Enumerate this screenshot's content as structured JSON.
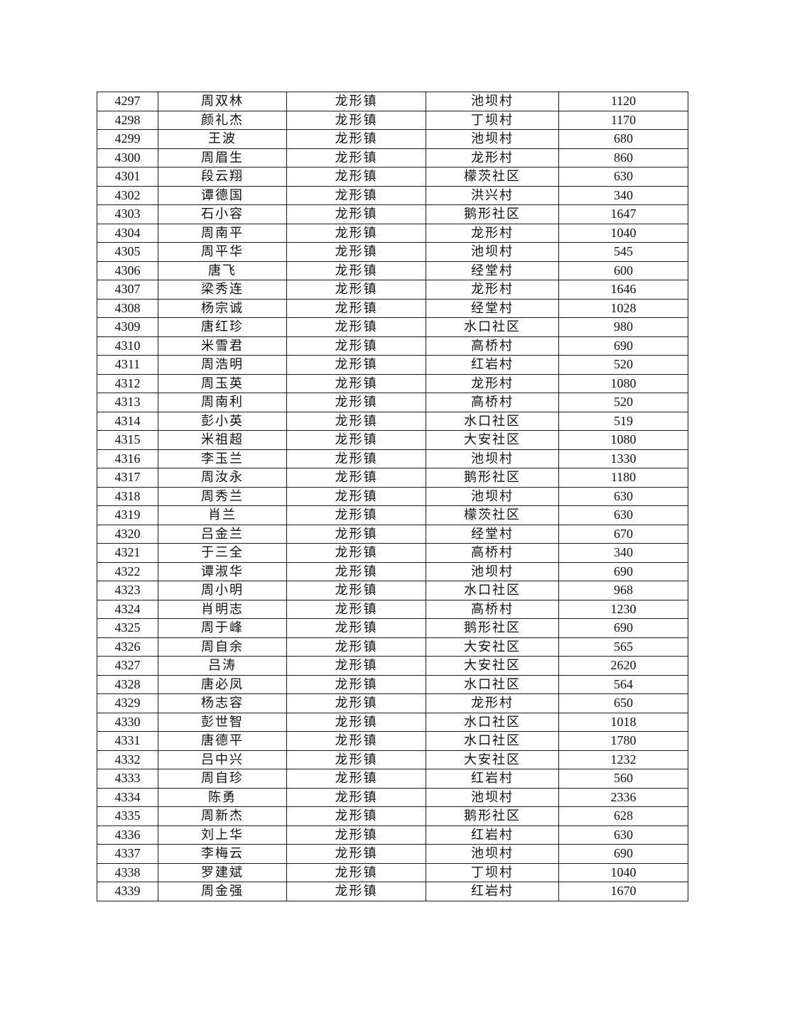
{
  "rows": [
    [
      "4297",
      "周双林",
      "龙形镇",
      "池坝村",
      "1120"
    ],
    [
      "4298",
      "颜礼杰",
      "龙形镇",
      "丁坝村",
      "1170"
    ],
    [
      "4299",
      "王波",
      "龙形镇",
      "池坝村",
      "680"
    ],
    [
      "4300",
      "周眉生",
      "龙形镇",
      "龙形村",
      "860"
    ],
    [
      "4301",
      "段云翔",
      "龙形镇",
      "檬茨社区",
      "630"
    ],
    [
      "4302",
      "谭德国",
      "龙形镇",
      "洪兴村",
      "340"
    ],
    [
      "4303",
      "石小容",
      "龙形镇",
      "鹅形社区",
      "1647"
    ],
    [
      "4304",
      "周南平",
      "龙形镇",
      "龙形村",
      "1040"
    ],
    [
      "4305",
      "周平华",
      "龙形镇",
      "池坝村",
      "545"
    ],
    [
      "4306",
      "唐飞",
      "龙形镇",
      "经堂村",
      "600"
    ],
    [
      "4307",
      "梁秀连",
      "龙形镇",
      "龙形村",
      "1646"
    ],
    [
      "4308",
      "杨宗诚",
      "龙形镇",
      "经堂村",
      "1028"
    ],
    [
      "4309",
      "唐红珍",
      "龙形镇",
      "水口社区",
      "980"
    ],
    [
      "4310",
      "米雪君",
      "龙形镇",
      "高桥村",
      "690"
    ],
    [
      "4311",
      "周浩明",
      "龙形镇",
      "红岩村",
      "520"
    ],
    [
      "4312",
      "周玉英",
      "龙形镇",
      "龙形村",
      "1080"
    ],
    [
      "4313",
      "周南利",
      "龙形镇",
      "高桥村",
      "520"
    ],
    [
      "4314",
      "彭小英",
      "龙形镇",
      "水口社区",
      "519"
    ],
    [
      "4315",
      "米祖超",
      "龙形镇",
      "大安社区",
      "1080"
    ],
    [
      "4316",
      "李玉兰",
      "龙形镇",
      "池坝村",
      "1330"
    ],
    [
      "4317",
      "周汝永",
      "龙形镇",
      "鹅形社区",
      "1180"
    ],
    [
      "4318",
      "周秀兰",
      "龙形镇",
      "池坝村",
      "630"
    ],
    [
      "4319",
      "肖兰",
      "龙形镇",
      "檬茨社区",
      "630"
    ],
    [
      "4320",
      "吕金兰",
      "龙形镇",
      "经堂村",
      "670"
    ],
    [
      "4321",
      "于三全",
      "龙形镇",
      "高桥村",
      "340"
    ],
    [
      "4322",
      "谭淑华",
      "龙形镇",
      "池坝村",
      "690"
    ],
    [
      "4323",
      "周小明",
      "龙形镇",
      "水口社区",
      "968"
    ],
    [
      "4324",
      "肖明志",
      "龙形镇",
      "高桥村",
      "1230"
    ],
    [
      "4325",
      "周于峰",
      "龙形镇",
      "鹅形社区",
      "690"
    ],
    [
      "4326",
      "周自余",
      "龙形镇",
      "大安社区",
      "565"
    ],
    [
      "4327",
      "吕涛",
      "龙形镇",
      "大安社区",
      "2620"
    ],
    [
      "4328",
      "唐必凤",
      "龙形镇",
      "水口社区",
      "564"
    ],
    [
      "4329",
      "杨志容",
      "龙形镇",
      "龙形村",
      "650"
    ],
    [
      "4330",
      "彭世智",
      "龙形镇",
      "水口社区",
      "1018"
    ],
    [
      "4331",
      "唐德平",
      "龙形镇",
      "水口社区",
      "1780"
    ],
    [
      "4332",
      "吕中兴",
      "龙形镇",
      "大安社区",
      "1232"
    ],
    [
      "4333",
      "周自珍",
      "龙形镇",
      "红岩村",
      "560"
    ],
    [
      "4334",
      "陈勇",
      "龙形镇",
      "池坝村",
      "2336"
    ],
    [
      "4335",
      "周新杰",
      "龙形镇",
      "鹅形社区",
      "628"
    ],
    [
      "4336",
      "刘上华",
      "龙形镇",
      "红岩村",
      "630"
    ],
    [
      "4337",
      "李梅云",
      "龙形镇",
      "池坝村",
      "690"
    ],
    [
      "4338",
      "罗建斌",
      "龙形镇",
      "丁坝村",
      "1040"
    ],
    [
      "4339",
      "周金强",
      "龙形镇",
      "红岩村",
      "1670"
    ]
  ]
}
